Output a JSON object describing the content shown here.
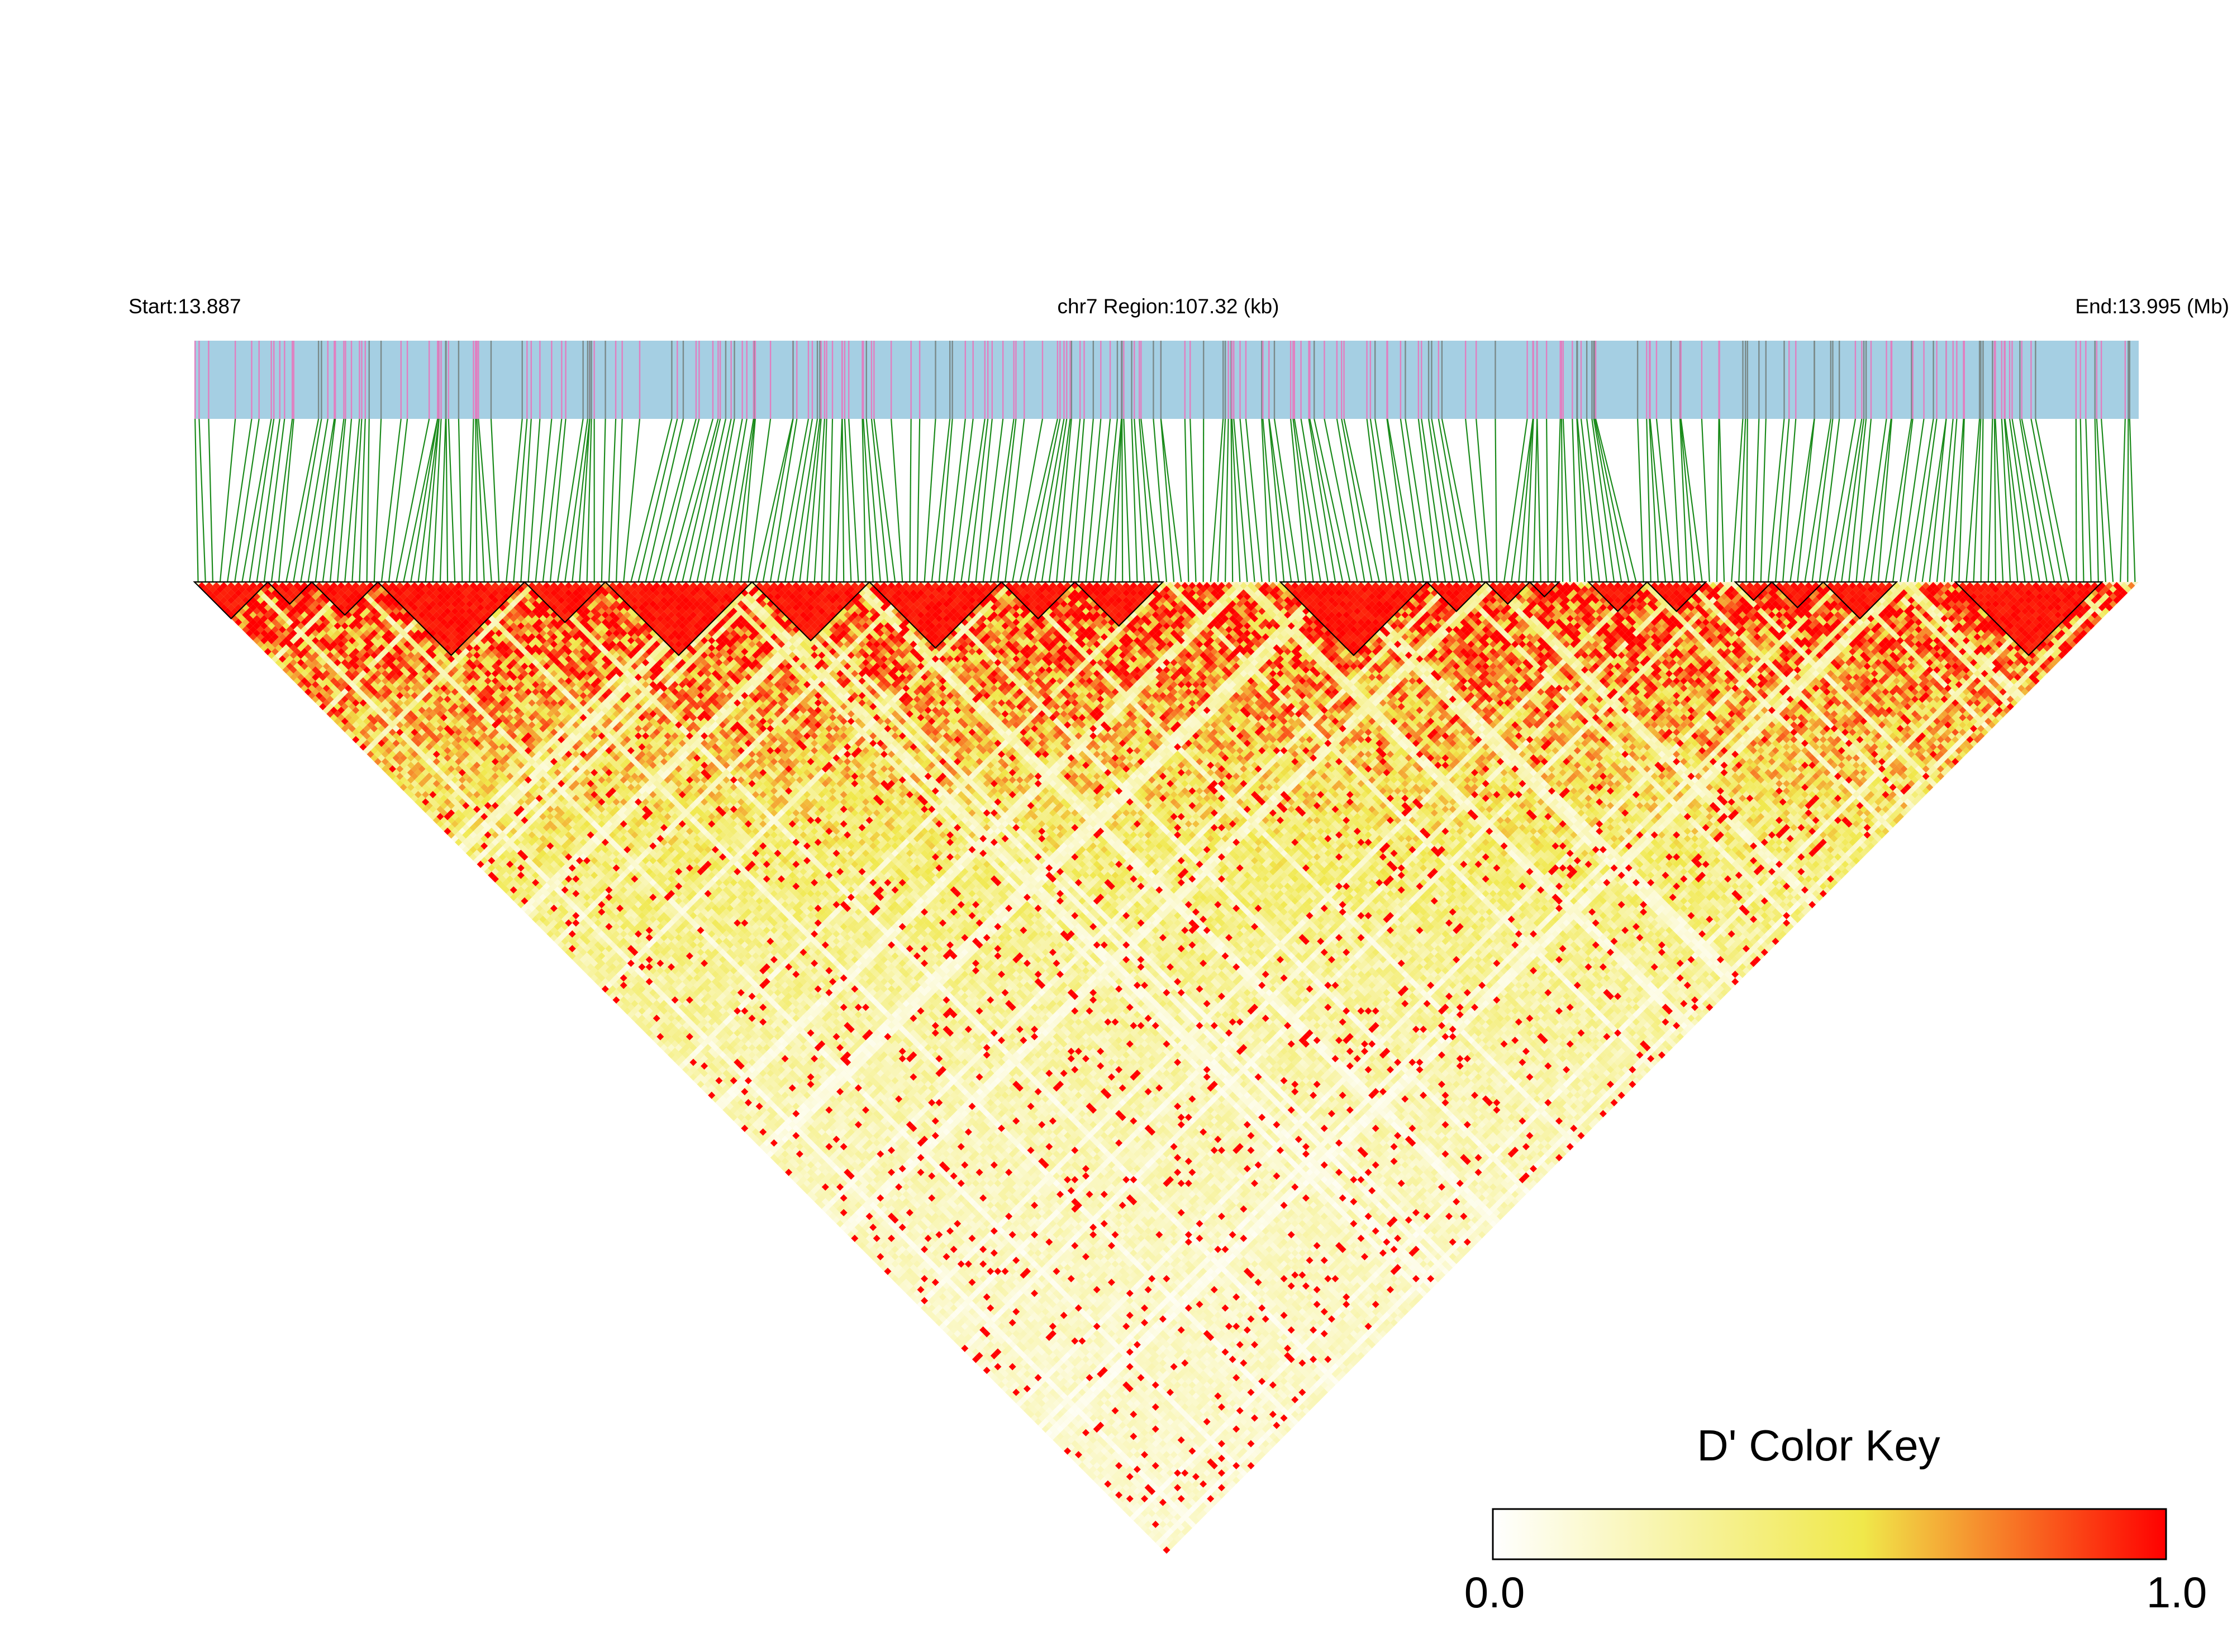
{
  "chart_data": {
    "type": "heatmap",
    "title": "",
    "chromosome_label": "chr7 Region:107.32 (kb)",
    "start_label": "Start:13.887",
    "end_label": "End:13.995 (Mb)",
    "region_start_mb": 13.887,
    "region_end_mb": 13.995,
    "region_length_kb": 107.32,
    "measure": "D'",
    "snp_count": 265,
    "value_range": [
      0.0,
      1.0
    ],
    "ld_blocks_by_snp_index": [
      [
        0,
        10
      ],
      [
        10,
        16
      ],
      [
        16,
        25
      ],
      [
        25,
        45
      ],
      [
        45,
        56
      ],
      [
        56,
        76
      ],
      [
        76,
        92
      ],
      [
        92,
        110
      ],
      [
        110,
        120
      ],
      [
        120,
        132
      ],
      [
        148,
        168
      ],
      [
        168,
        176
      ],
      [
        176,
        182
      ],
      [
        182,
        186
      ],
      [
        190,
        198
      ],
      [
        198,
        206
      ],
      [
        210,
        215
      ],
      [
        215,
        222
      ],
      [
        222,
        232
      ],
      [
        240,
        260
      ]
    ],
    "legend": {
      "title": "D' Color Key",
      "min_label": "0.0",
      "max_label": "1.0",
      "colors": [
        "#ffffff",
        "#f0e84a",
        "#ff0000"
      ]
    },
    "track_colors": {
      "snp_bar_background": "#a5cfe3",
      "snp_tick_primary": "#e17fc0",
      "snp_tick_secondary": "#7a8a8a",
      "connector_lines": "#1a8a1a"
    }
  }
}
